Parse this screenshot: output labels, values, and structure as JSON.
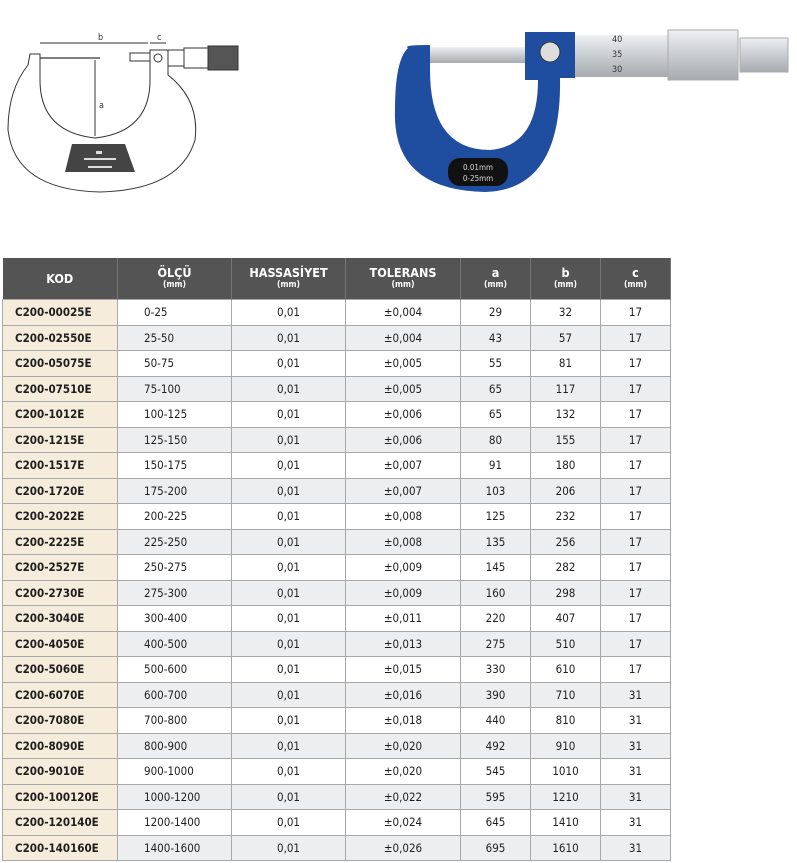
{
  "drawing": {
    "labels": {
      "a": "a",
      "b": "b",
      "c": "c"
    }
  },
  "photo": {
    "badge_line1": "0.01mm",
    "badge_line2": "0-25mm",
    "scale": [
      "40",
      "35",
      "30"
    ],
    "frame_color": "#1f4ea0"
  },
  "table": {
    "headers": [
      {
        "label": "KOD",
        "unit": ""
      },
      {
        "label": "ÖLÇÜ",
        "unit": "(mm)"
      },
      {
        "label": "HASSASİYET",
        "unit": "(mm)"
      },
      {
        "label": "TOLERANS",
        "unit": "(mm)"
      },
      {
        "label": "a",
        "unit": "(mm)"
      },
      {
        "label": "b",
        "unit": "(mm)"
      },
      {
        "label": "c",
        "unit": "(mm)"
      }
    ],
    "rows": [
      [
        "C200-00025E",
        "0-25",
        "0,01",
        "±0,004",
        "29",
        "32",
        "17"
      ],
      [
        "C200-02550E",
        "25-50",
        "0,01",
        "±0,004",
        "43",
        "57",
        "17"
      ],
      [
        "C200-05075E",
        "50-75",
        "0,01",
        "±0,005",
        "55",
        "81",
        "17"
      ],
      [
        "C200-07510E",
        "75-100",
        "0,01",
        "±0,005",
        "65",
        "117",
        "17"
      ],
      [
        "C200-1012E",
        "100-125",
        "0,01",
        "±0,006",
        "65",
        "132",
        "17"
      ],
      [
        "C200-1215E",
        "125-150",
        "0,01",
        "±0,006",
        "80",
        "155",
        "17"
      ],
      [
        "C200-1517E",
        "150-175",
        "0,01",
        "±0,007",
        "91",
        "180",
        "17"
      ],
      [
        "C200-1720E",
        "175-200",
        "0,01",
        "±0,007",
        "103",
        "206",
        "17"
      ],
      [
        "C200-2022E",
        "200-225",
        "0,01",
        "±0,008",
        "125",
        "232",
        "17"
      ],
      [
        "C200-2225E",
        "225-250",
        "0,01",
        "±0,008",
        "135",
        "256",
        "17"
      ],
      [
        "C200-2527E",
        "250-275",
        "0,01",
        "±0,009",
        "145",
        "282",
        "17"
      ],
      [
        "C200-2730E",
        "275-300",
        "0,01",
        "±0,009",
        "160",
        "298",
        "17"
      ],
      [
        "C200-3040E",
        "300-400",
        "0,01",
        "±0,011",
        "220",
        "407",
        "17"
      ],
      [
        "C200-4050E",
        "400-500",
        "0,01",
        "±0,013",
        "275",
        "510",
        "17"
      ],
      [
        "C200-5060E",
        "500-600",
        "0,01",
        "±0,015",
        "330",
        "610",
        "17"
      ],
      [
        "C200-6070E",
        "600-700",
        "0,01",
        "±0,016",
        "390",
        "710",
        "31"
      ],
      [
        "C200-7080E",
        "700-800",
        "0,01",
        "±0,018",
        "440",
        "810",
        "31"
      ],
      [
        "C200-8090E",
        "800-900",
        "0,01",
        "±0,020",
        "492",
        "910",
        "31"
      ],
      [
        "C200-9010E",
        "900-1000",
        "0,01",
        "±0,020",
        "545",
        "1010",
        "31"
      ],
      [
        "C200-100120E",
        "1000-1200",
        "0,01",
        "±0,022",
        "595",
        "1210",
        "31"
      ],
      [
        "C200-120140E",
        "1200-1400",
        "0,01",
        "±0,024",
        "645",
        "1410",
        "31"
      ],
      [
        "C200-140160E",
        "1400-1600",
        "0,01",
        "±0,026",
        "695",
        "1610",
        "31"
      ]
    ]
  }
}
